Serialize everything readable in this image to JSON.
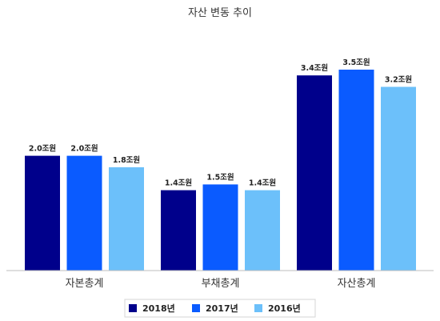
{
  "chart_data": {
    "type": "bar",
    "title": "자산 변동 추이",
    "categories": [
      "자본총계",
      "부채총계",
      "자산총계"
    ],
    "series": [
      {
        "name": "2018년",
        "color": "#00008b",
        "values": [
          2.0,
          1.4,
          3.4
        ],
        "labels": [
          "2.0조원",
          "1.4조원",
          "3.4조원"
        ]
      },
      {
        "name": "2017년",
        "color": "#0a5bff",
        "values": [
          2.0,
          1.5,
          3.5
        ],
        "labels": [
          "2.0조원",
          "1.5조원",
          "3.5조원"
        ]
      },
      {
        "name": "2016년",
        "color": "#6cc0fa",
        "values": [
          1.8,
          1.4,
          3.2
        ],
        "labels": [
          "1.8조원",
          "1.4조원",
          "3.2조원"
        ]
      }
    ],
    "ylim": [
      0,
      3.5
    ],
    "grid": false,
    "legend": "bottom-center"
  }
}
